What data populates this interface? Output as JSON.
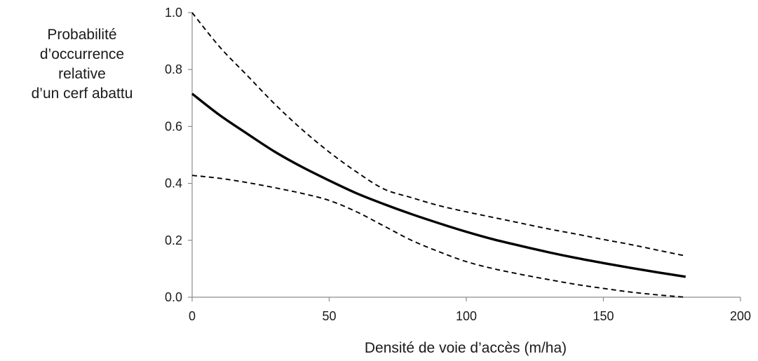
{
  "chart_data": {
    "type": "line",
    "title": "",
    "xlabel": "Densité de voie d’accès (m/ha)",
    "ylabel_lines": [
      "Probabilité",
      "d’occurrence",
      "relative",
      "d’un cerf abattu"
    ],
    "xlim": [
      0,
      200
    ],
    "ylim": [
      0.0,
      1.0
    ],
    "x_ticks": [
      0,
      50,
      100,
      150,
      200
    ],
    "y_ticks": [
      0.0,
      0.2,
      0.4,
      0.6,
      0.8,
      1.0
    ],
    "x_tick_labels": [
      "0",
      "50",
      "100",
      "150",
      "200"
    ],
    "y_tick_labels": [
      "0.0",
      "0.2",
      "0.4",
      "0.6",
      "0.8",
      "1.0"
    ],
    "grid": false,
    "legend": "none",
    "series": [
      {
        "style": "solid",
        "color": "#000000",
        "x": [
          0,
          10,
          20,
          30,
          40,
          50,
          60,
          70,
          80,
          90,
          100,
          110,
          120,
          130,
          140,
          150,
          160,
          170,
          180
        ],
        "y": [
          0.715,
          0.64,
          0.575,
          0.512,
          0.458,
          0.41,
          0.365,
          0.327,
          0.292,
          0.26,
          0.23,
          0.203,
          0.18,
          0.158,
          0.138,
          0.12,
          0.103,
          0.087,
          0.072
        ]
      },
      {
        "style": "dashed",
        "color": "#000000",
        "x": [
          0,
          10,
          20,
          30,
          40,
          50,
          60,
          70,
          80,
          90,
          100,
          110,
          120,
          130,
          140,
          150,
          160,
          170,
          180
        ],
        "y": [
          1.0,
          0.88,
          0.78,
          0.68,
          0.59,
          0.51,
          0.44,
          0.38,
          0.35,
          0.322,
          0.3,
          0.28,
          0.26,
          0.24,
          0.222,
          0.203,
          0.185,
          0.165,
          0.145
        ]
      },
      {
        "style": "dashed",
        "color": "#000000",
        "x": [
          0,
          10,
          20,
          30,
          40,
          50,
          60,
          70,
          80,
          90,
          100,
          110,
          120,
          130,
          140,
          150,
          160,
          170,
          180
        ],
        "y": [
          0.428,
          0.418,
          0.403,
          0.385,
          0.365,
          0.34,
          0.3,
          0.25,
          0.2,
          0.16,
          0.125,
          0.1,
          0.08,
          0.062,
          0.045,
          0.031,
          0.018,
          0.008,
          0.0
        ]
      }
    ]
  }
}
